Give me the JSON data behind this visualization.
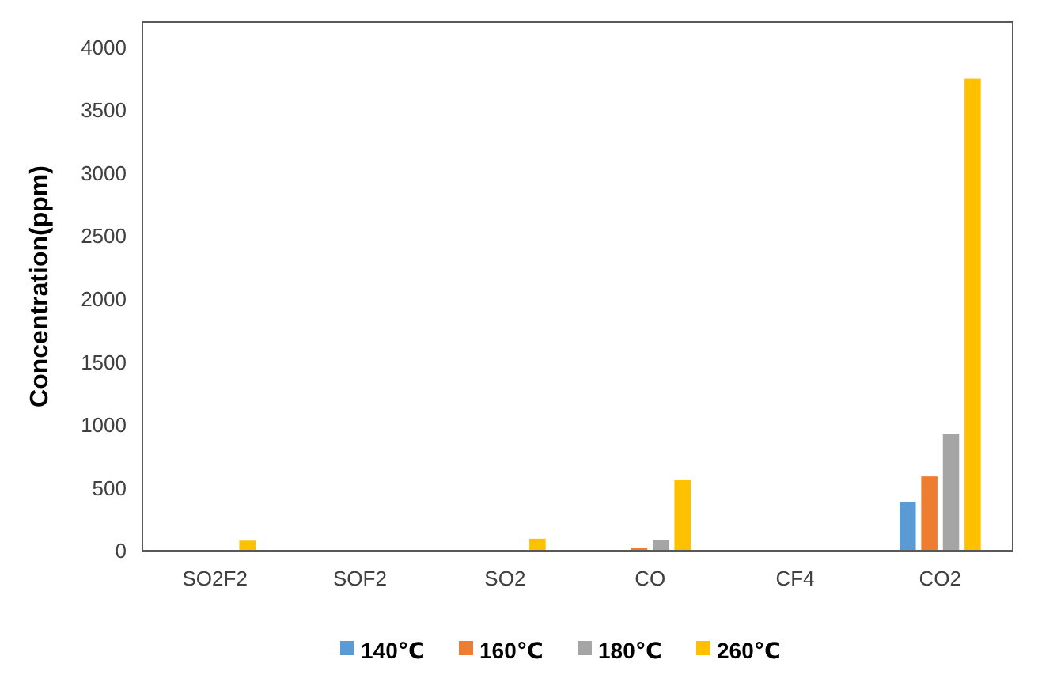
{
  "chart_data": {
    "type": "bar",
    "ylabel": "Concentration(ppm)",
    "categories": [
      "SO2F2",
      "SOF2",
      "SO2",
      "CO",
      "CF4",
      "CO2"
    ],
    "series": [
      {
        "name": "140℃",
        "color": "#5b9bd5",
        "values": [
          0,
          0,
          0,
          0,
          0,
          390
        ]
      },
      {
        "name": "160℃",
        "color": "#ed7d31",
        "values": [
          0,
          0,
          0,
          25,
          0,
          590
        ]
      },
      {
        "name": "180℃",
        "color": "#a5a5a5",
        "values": [
          0,
          0,
          0,
          85,
          0,
          930
        ]
      },
      {
        "name": "260℃",
        "color": "#ffc000",
        "values": [
          80,
          0,
          95,
          560,
          0,
          3750
        ]
      }
    ],
    "ylim": [
      0,
      4200
    ],
    "yticks": [
      0,
      500,
      1000,
      1500,
      2000,
      2500,
      3000,
      3500,
      4000
    ],
    "grid": false,
    "legend": "bottom"
  }
}
